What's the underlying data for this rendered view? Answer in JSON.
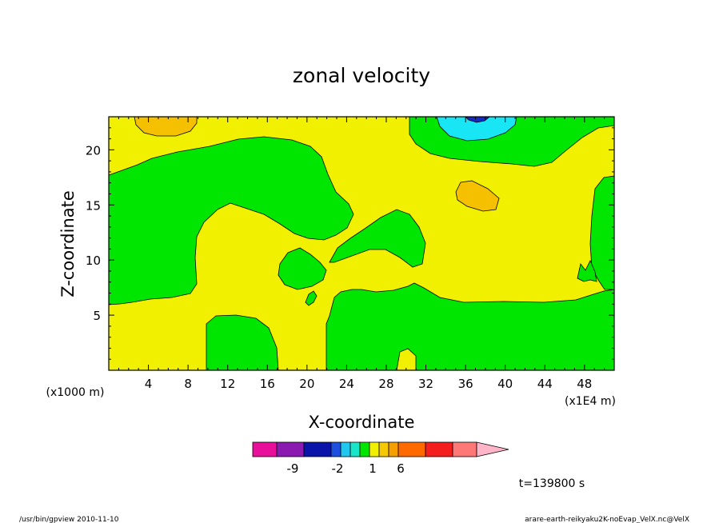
{
  "chart_data": {
    "type": "heatmap",
    "title": "zonal velocity",
    "xlabel": "X-coordinate",
    "ylabel": "Z-coordinate",
    "x_unit": "(x1000 m)",
    "x_multiplier": "(x1E4 m)",
    "xlim": [
      0,
      51
    ],
    "ylim": [
      0,
      23
    ],
    "x_ticks": [
      4,
      8,
      12,
      16,
      20,
      24,
      28,
      32,
      36,
      40,
      44,
      48
    ],
    "y_ticks": [
      5,
      10,
      15,
      20
    ],
    "colorbar": {
      "colors": [
        "#e8109a",
        "#8a1ab0",
        "#0a14a8",
        "#1e50e0",
        "#20c8f0",
        "#19e6c8",
        "#00e600",
        "#f0f000",
        "#f5c800",
        "#f5a000",
        "#ff6a00",
        "#f51e1e",
        "#ff7878",
        "#ffb4c8"
      ],
      "tick_labels": [
        "-9",
        "-2",
        "1",
        "6"
      ]
    },
    "regions": {
      "background": "#f0f000",
      "green": "#00e600",
      "orange": "#f5c000",
      "cyan": "#19e6f5",
      "blue": "#1428c8"
    }
  },
  "time_label": "t=139800 s",
  "footer": {
    "left": "/usr/bin/gpview   2010-11-10",
    "right": "arare-earth-reikyaku2K-noEvap_VelX.nc@VelX"
  }
}
